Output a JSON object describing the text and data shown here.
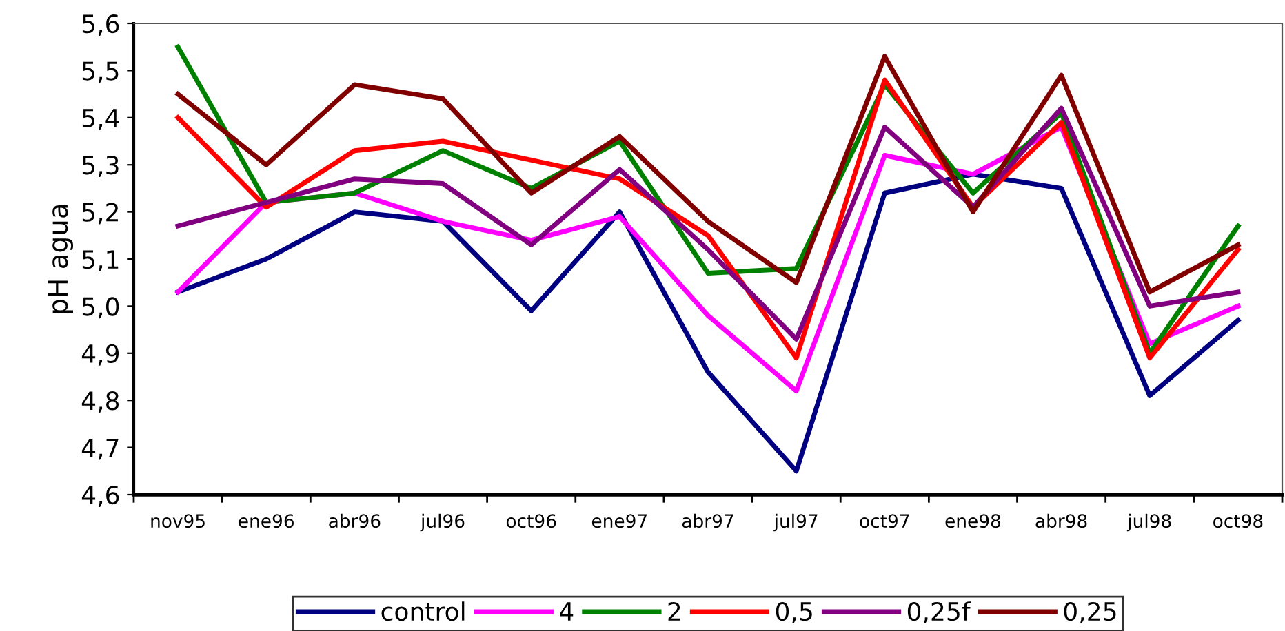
{
  "chart_data": {
    "type": "line",
    "ylabel": "pH agua",
    "categories": [
      "nov95",
      "ene96",
      "abr96",
      "jul96",
      "oct96",
      "ene97",
      "abr97",
      "jul97",
      "oct97",
      "ene98",
      "abr98",
      "jul98",
      "oct98"
    ],
    "series": [
      {
        "name": "control",
        "color": "#000080",
        "values": [
          5.03,
          5.1,
          5.2,
          5.18,
          4.99,
          5.2,
          4.86,
          4.65,
          5.24,
          5.28,
          5.25,
          4.81,
          4.97
        ]
      },
      {
        "name": "4",
        "color": "#ff00ff",
        "values": [
          5.03,
          5.22,
          5.24,
          5.18,
          5.14,
          5.19,
          4.98,
          4.82,
          5.32,
          5.28,
          5.38,
          4.92,
          5.0
        ]
      },
      {
        "name": "2",
        "color": "#008000",
        "values": [
          5.55,
          5.22,
          5.24,
          5.33,
          5.25,
          5.35,
          5.07,
          5.08,
          5.47,
          5.24,
          5.41,
          4.9,
          5.17
        ]
      },
      {
        "name": "0,5",
        "color": "#ff0000",
        "values": [
          5.4,
          5.21,
          5.33,
          5.35,
          5.31,
          5.27,
          5.15,
          4.89,
          5.48,
          5.21,
          5.39,
          4.89,
          5.12
        ]
      },
      {
        "name": "0,25f",
        "color": "#800080",
        "values": [
          5.17,
          5.22,
          5.27,
          5.26,
          5.13,
          5.29,
          5.12,
          4.93,
          5.38,
          5.21,
          5.42,
          5.0,
          5.03
        ]
      },
      {
        "name": "0,25",
        "color": "#800000",
        "values": [
          5.45,
          5.3,
          5.47,
          5.44,
          5.24,
          5.36,
          5.18,
          5.05,
          5.53,
          5.2,
          5.49,
          5.03,
          5.13
        ]
      }
    ],
    "ylim": [
      4.6,
      5.6
    ],
    "yticks": [
      {
        "value": 4.6,
        "label": "4,6"
      },
      {
        "value": 4.7,
        "label": "4,7"
      },
      {
        "value": 4.8,
        "label": "4,8"
      },
      {
        "value": 4.9,
        "label": "4,9"
      },
      {
        "value": 5.0,
        "label": "5,0"
      },
      {
        "value": 5.1,
        "label": "5,1"
      },
      {
        "value": 5.2,
        "label": "5,2"
      },
      {
        "value": 5.3,
        "label": "5,3"
      },
      {
        "value": 5.4,
        "label": "5,4"
      },
      {
        "value": 5.5,
        "label": "5,5"
      },
      {
        "value": 5.6,
        "label": "5,6"
      }
    ],
    "grid": false,
    "legend": "bottom",
    "marker": "none",
    "line_style": "solid"
  }
}
